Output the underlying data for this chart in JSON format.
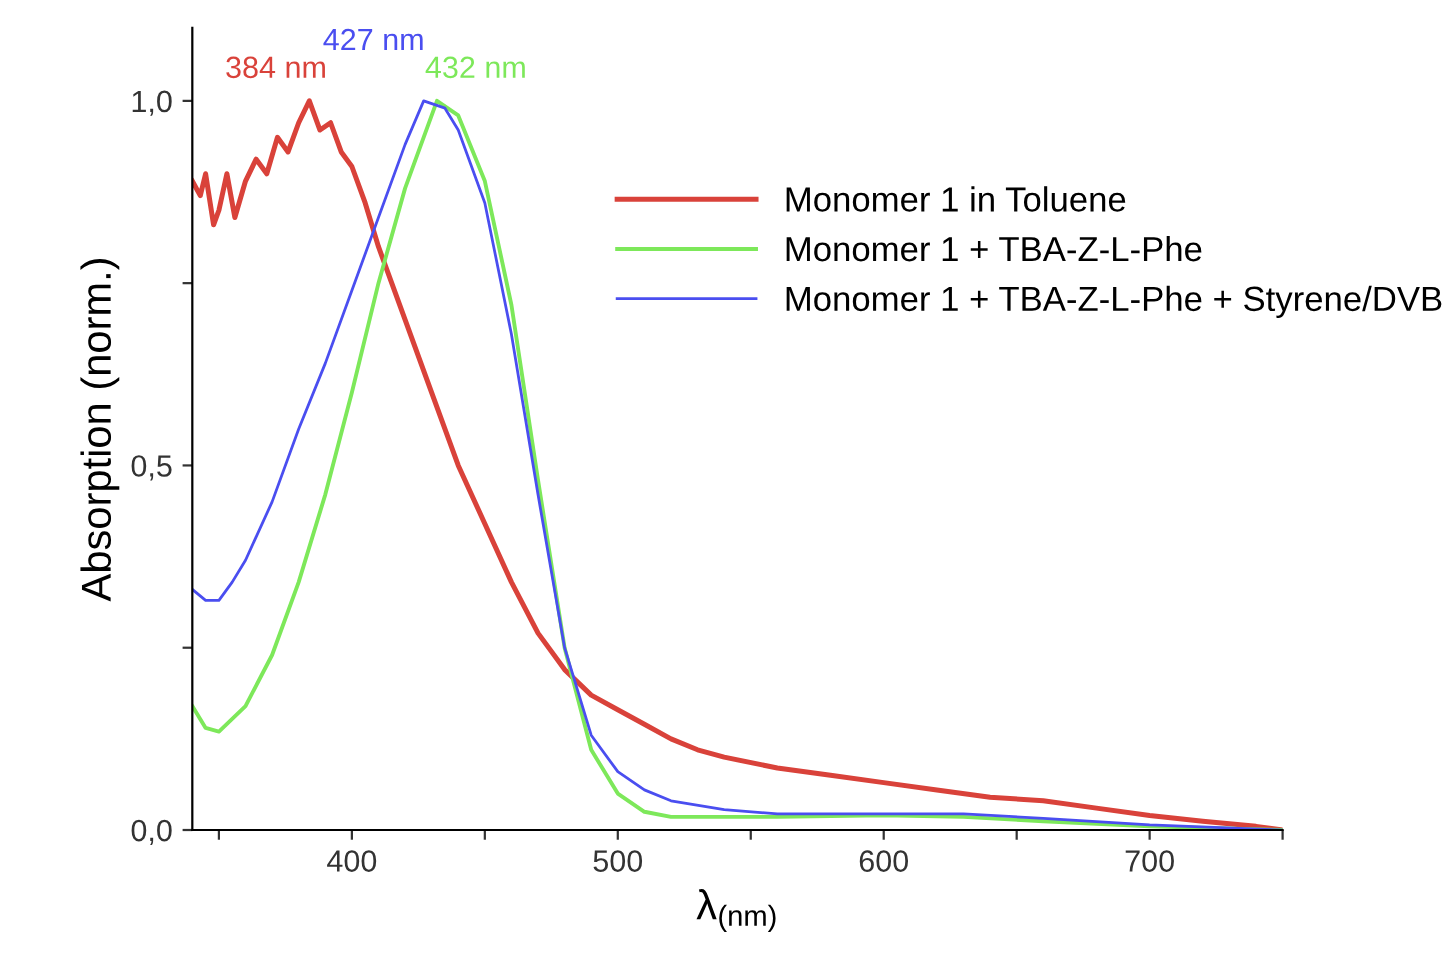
{
  "chart_data": {
    "type": "line",
    "xlabel": "λ$_{(nm)}$",
    "ylabel": "Absorption (norm.)",
    "xlim": [
      340,
      750
    ],
    "ylim": [
      0,
      1.1
    ],
    "xticks": [
      {
        "value": 350,
        "label": null
      },
      400,
      {
        "value": 450,
        "label": null
      },
      500,
      {
        "value": 550,
        "label": null
      },
      600,
      {
        "value": 650,
        "label": null
      },
      700,
      {
        "value": 750,
        "label": null
      }
    ],
    "yticks": [
      {
        "value": 0,
        "label": "0,0"
      },
      {
        "value": 0.25,
        "label": null
      },
      {
        "value": 0.5,
        "label": "0,5"
      },
      {
        "value": 0.75,
        "label": null
      },
      {
        "value": 1.0,
        "label": "1,0"
      }
    ],
    "grid": false,
    "legend": "top right",
    "marker": "none",
    "line_style": "solid",
    "series": [
      {
        "name": "Monomer 1 in Toluene",
        "color": "#d9423a",
        "x": [
          340,
          343,
          345,
          348,
          350,
          353,
          356,
          360,
          364,
          368,
          372,
          376,
          380,
          384,
          388,
          392,
          396,
          400,
          405,
          410,
          420,
          430,
          440,
          450,
          460,
          470,
          480,
          490,
          500,
          510,
          520,
          530,
          540,
          560,
          580,
          600,
          620,
          640,
          660,
          680,
          700,
          720,
          740,
          750
        ],
        "values": [
          0.89,
          0.87,
          0.9,
          0.83,
          0.85,
          0.9,
          0.84,
          0.89,
          0.92,
          0.9,
          0.95,
          0.93,
          0.97,
          1.0,
          0.96,
          0.97,
          0.93,
          0.91,
          0.86,
          0.8,
          0.7,
          0.6,
          0.5,
          0.42,
          0.34,
          0.27,
          0.22,
          0.185,
          0.165,
          0.145,
          0.125,
          0.11,
          0.1,
          0.085,
          0.075,
          0.065,
          0.055,
          0.045,
          0.04,
          0.03,
          0.02,
          0.012,
          0.005,
          0.0
        ]
      },
      {
        "name": "Monomer 1 + TBA-Z-L-Phe",
        "color": "#7de85a",
        "x": [
          340,
          345,
          350,
          360,
          370,
          380,
          390,
          400,
          410,
          420,
          432,
          440,
          450,
          460,
          470,
          480,
          490,
          500,
          510,
          520,
          560,
          600,
          630,
          660,
          700,
          750
        ],
        "values": [
          0.17,
          0.14,
          0.135,
          0.17,
          0.24,
          0.34,
          0.46,
          0.6,
          0.75,
          0.88,
          1.0,
          0.98,
          0.89,
          0.72,
          0.48,
          0.25,
          0.11,
          0.05,
          0.025,
          0.018,
          0.018,
          0.02,
          0.018,
          0.012,
          0.005,
          0.0
        ]
      },
      {
        "name": "Monomer 1 + TBA-Z-L-Phe + Styrene/DVB",
        "color": "#4a4ef0",
        "x": [
          340,
          345,
          350,
          355,
          360,
          370,
          380,
          390,
          400,
          410,
          420,
          427,
          435,
          440,
          450,
          460,
          470,
          480,
          490,
          500,
          510,
          520,
          540,
          560,
          600,
          630,
          660,
          700,
          750
        ],
        "values": [
          0.33,
          0.315,
          0.315,
          0.34,
          0.37,
          0.45,
          0.55,
          0.64,
          0.74,
          0.84,
          0.94,
          1.0,
          0.99,
          0.96,
          0.86,
          0.68,
          0.46,
          0.25,
          0.13,
          0.08,
          0.055,
          0.04,
          0.028,
          0.022,
          0.022,
          0.022,
          0.016,
          0.007,
          0.0
        ]
      }
    ],
    "annotations": [
      {
        "text": "384 nm",
        "x": 384,
        "y": 1.0
      },
      {
        "text": "432 nm",
        "x": 432,
        "y": 1.0
      },
      {
        "text": "427 nm",
        "x": 427,
        "y": 1.0
      }
    ]
  }
}
